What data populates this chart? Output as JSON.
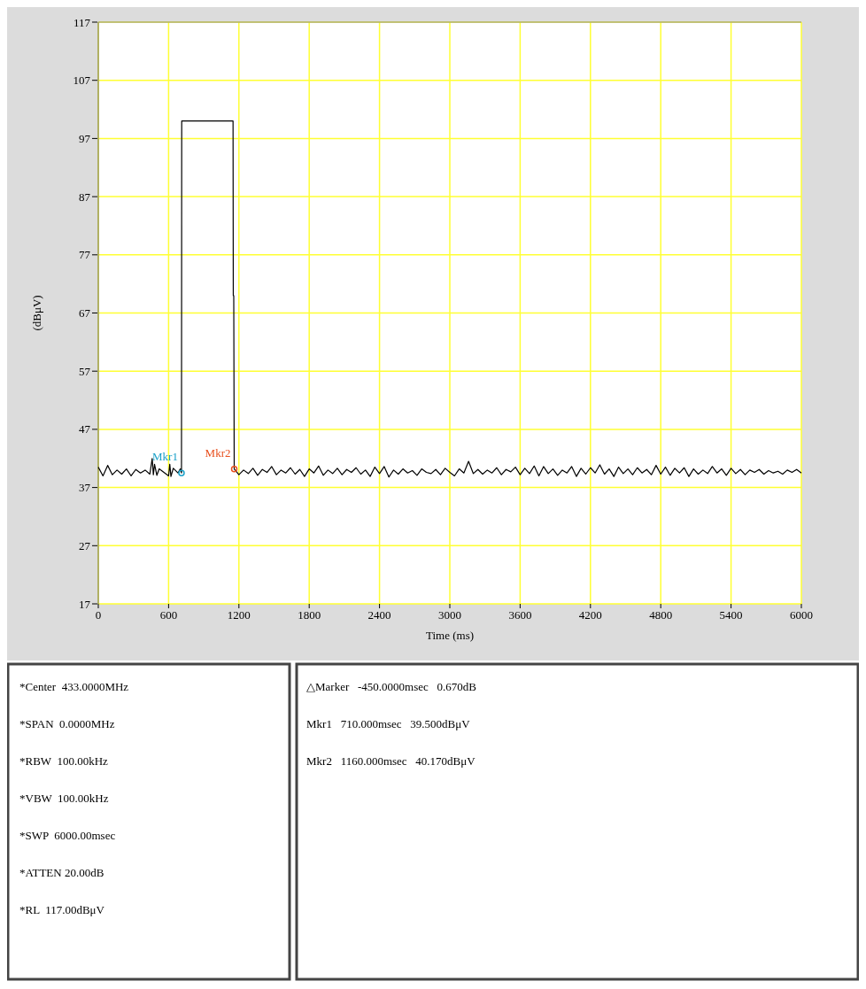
{
  "chart_data": {
    "type": "line",
    "xlabel": "Time (ms)",
    "ylabel": "(dBμV)",
    "xlim": [
      0,
      6000
    ],
    "ylim": [
      17,
      117
    ],
    "xticks": [
      0,
      600,
      1200,
      1800,
      2400,
      3000,
      3600,
      4200,
      4800,
      5400,
      6000
    ],
    "yticks": [
      17,
      27,
      37,
      47,
      57,
      67,
      77,
      87,
      97,
      107,
      117
    ],
    "grid": true,
    "marker": "none",
    "line_style": "solid",
    "series": [
      {
        "color": "#000000",
        "x": [
          0,
          40,
          80,
          120,
          160,
          200,
          240,
          280,
          320,
          360,
          400,
          440,
          460,
          470,
          480,
          500,
          520,
          560,
          600,
          610,
          620,
          640,
          680,
          700,
          710,
          712,
          720,
          1150,
          1152,
          1156,
          1160,
          1200,
          1240,
          1280,
          1320,
          1360,
          1400,
          1440,
          1480,
          1520,
          1560,
          1600,
          1640,
          1680,
          1720,
          1760,
          1800,
          1840,
          1880,
          1920,
          1960,
          2000,
          2040,
          2080,
          2120,
          2160,
          2200,
          2240,
          2280,
          2320,
          2360,
          2400,
          2440,
          2480,
          2520,
          2560,
          2600,
          2640,
          2680,
          2720,
          2760,
          2800,
          2840,
          2880,
          2920,
          2960,
          3000,
          3040,
          3080,
          3120,
          3160,
          3200,
          3240,
          3280,
          3320,
          3360,
          3400,
          3440,
          3480,
          3520,
          3560,
          3600,
          3640,
          3680,
          3720,
          3760,
          3800,
          3840,
          3880,
          3920,
          3960,
          4000,
          4040,
          4080,
          4120,
          4160,
          4200,
          4240,
          4280,
          4320,
          4360,
          4400,
          4440,
          4480,
          4520,
          4560,
          4600,
          4640,
          4680,
          4720,
          4760,
          4800,
          4840,
          4880,
          4920,
          4960,
          5000,
          5040,
          5080,
          5120,
          5160,
          5200,
          5240,
          5280,
          5320,
          5360,
          5400,
          5440,
          5480,
          5520,
          5560,
          5600,
          5640,
          5680,
          5720,
          5760,
          5800,
          5840,
          5880,
          5920,
          5960,
          6000
        ],
        "values": [
          40.5,
          39,
          40.8,
          39.2,
          40,
          39.3,
          40.2,
          39,
          40.1,
          39.5,
          40,
          39.3,
          42,
          39.2,
          41,
          39.1,
          40.2,
          39.6,
          39,
          41,
          38.9,
          40.3,
          39.5,
          40.2,
          39.5,
          100,
          100,
          100,
          70,
          70,
          40.2,
          39.2,
          40,
          39.4,
          40.3,
          39.1,
          40.1,
          39.6,
          40.6,
          39.2,
          40,
          39.5,
          40.4,
          39.3,
          40.1,
          38.9,
          40.2,
          39.5,
          40.7,
          39.1,
          40,
          39.4,
          40.3,
          39.2,
          40.1,
          39.6,
          40.4,
          39.3,
          40,
          38.9,
          40.5,
          39.4,
          40.6,
          38.8,
          40,
          39.3,
          40.2,
          39.5,
          39.9,
          39.1,
          40.2,
          39.6,
          39.4,
          40.1,
          39.2,
          40.3,
          39.6,
          39,
          40.2,
          39.5,
          41.5,
          39.4,
          40.1,
          39.3,
          40,
          39.5,
          40.4,
          39.2,
          40.1,
          39.7,
          40.5,
          39.2,
          40.3,
          39.4,
          40.7,
          39,
          40.6,
          39.4,
          40.2,
          39.1,
          40,
          39.5,
          40.6,
          38.9,
          40.3,
          39.3,
          40.4,
          39.5,
          40.9,
          39.3,
          40.2,
          38.9,
          40.5,
          39.4,
          40.2,
          39.2,
          40.4,
          39.5,
          40.1,
          39.2,
          40.8,
          39.3,
          40.5,
          39.1,
          40.3,
          39.5,
          40.4,
          38.9,
          40.2,
          39.3,
          40,
          39.4,
          40.6,
          39.5,
          40.2,
          39.1,
          40.3,
          39.4,
          40.1,
          39.2,
          40,
          39.6,
          40.1,
          39.3,
          39.9,
          39.5,
          39.8,
          39.3,
          40,
          39.6,
          40.1,
          39.5
        ]
      }
    ],
    "annotations": [
      {
        "text": "Mkr1",
        "x": 710,
        "y": 39.5
      },
      {
        "text": "Mkr2",
        "x": 1160,
        "y": 40.17
      },
      "*Center  433.0000MHz",
      "*SPAN  0.0000MHz",
      "*RBW  100.00kHz",
      "*VBW  100.00kHz",
      "*SWP  6000.00msec",
      "*ATTEN 20.00dB",
      "*RL  117.00dBμV",
      "△Marker   -450.0000msec   0.670dB",
      "Mkr1   710.000msec   39.500dBμV",
      "Mkr2   1160.000msec   40.170dBμV"
    ]
  }
}
